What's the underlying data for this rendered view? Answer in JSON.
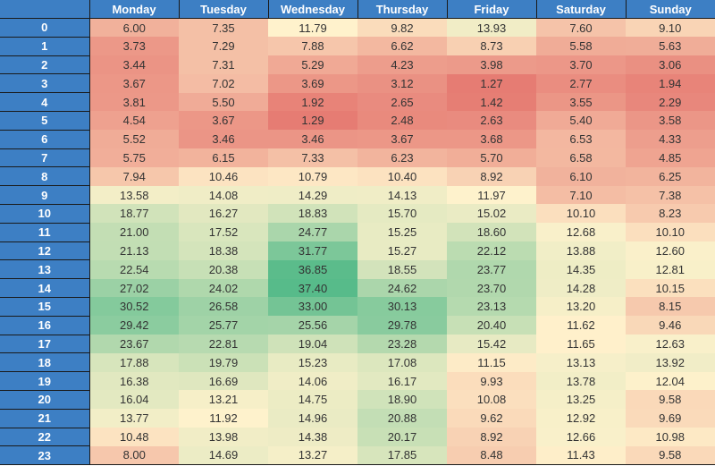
{
  "table": {
    "columns": [
      "Monday",
      "Tuesday",
      "Wednesday",
      "Thursday",
      "Friday",
      "Saturday",
      "Sunday"
    ],
    "rows": [
      {
        "hour": "0",
        "values": [
          "6.00",
          "7.35",
          "11.79",
          "9.82",
          "13.93",
          "7.60",
          "9.10"
        ]
      },
      {
        "hour": "1",
        "values": [
          "3.73",
          "7.29",
          "7.88",
          "6.62",
          "8.73",
          "5.58",
          "5.63"
        ]
      },
      {
        "hour": "2",
        "values": [
          "3.44",
          "7.31",
          "5.29",
          "4.23",
          "3.98",
          "3.70",
          "3.06"
        ]
      },
      {
        "hour": "3",
        "values": [
          "3.67",
          "7.02",
          "3.69",
          "3.12",
          "1.27",
          "2.77",
          "1.94"
        ]
      },
      {
        "hour": "4",
        "values": [
          "3.81",
          "5.50",
          "1.92",
          "2.65",
          "1.42",
          "3.55",
          "2.29"
        ]
      },
      {
        "hour": "5",
        "values": [
          "4.54",
          "3.67",
          "1.29",
          "2.48",
          "2.63",
          "5.40",
          "3.58"
        ]
      },
      {
        "hour": "6",
        "values": [
          "5.52",
          "3.46",
          "3.46",
          "3.67",
          "3.68",
          "6.53",
          "4.33"
        ]
      },
      {
        "hour": "7",
        "values": [
          "5.75",
          "6.15",
          "7.33",
          "6.23",
          "5.70",
          "6.58",
          "4.85"
        ]
      },
      {
        "hour": "8",
        "values": [
          "7.94",
          "10.46",
          "10.79",
          "10.40",
          "8.92",
          "6.10",
          "6.25"
        ]
      },
      {
        "hour": "9",
        "values": [
          "13.58",
          "14.08",
          "14.29",
          "14.13",
          "11.97",
          "7.10",
          "7.38"
        ]
      },
      {
        "hour": "10",
        "values": [
          "18.77",
          "16.27",
          "18.83",
          "15.70",
          "15.02",
          "10.10",
          "8.23"
        ]
      },
      {
        "hour": "11",
        "values": [
          "21.00",
          "17.52",
          "24.77",
          "15.25",
          "18.60",
          "12.68",
          "10.10"
        ]
      },
      {
        "hour": "12",
        "values": [
          "21.13",
          "18.38",
          "31.77",
          "15.27",
          "22.12",
          "13.88",
          "12.60"
        ]
      },
      {
        "hour": "13",
        "values": [
          "22.54",
          "20.38",
          "36.85",
          "18.55",
          "23.77",
          "14.35",
          "12.81"
        ]
      },
      {
        "hour": "14",
        "values": [
          "27.02",
          "24.02",
          "37.40",
          "24.62",
          "23.70",
          "14.28",
          "10.15"
        ]
      },
      {
        "hour": "15",
        "values": [
          "30.52",
          "26.58",
          "33.00",
          "30.13",
          "23.13",
          "13.20",
          "8.15"
        ]
      },
      {
        "hour": "16",
        "values": [
          "29.42",
          "25.77",
          "25.56",
          "29.78",
          "20.40",
          "11.62",
          "9.46"
        ]
      },
      {
        "hour": "17",
        "values": [
          "23.67",
          "22.81",
          "19.04",
          "23.28",
          "15.42",
          "11.65",
          "12.63"
        ]
      },
      {
        "hour": "18",
        "values": [
          "17.88",
          "19.79",
          "15.23",
          "17.08",
          "11.15",
          "13.13",
          "13.92"
        ]
      },
      {
        "hour": "19",
        "values": [
          "16.38",
          "16.69",
          "14.06",
          "16.17",
          "9.93",
          "13.78",
          "12.04"
        ]
      },
      {
        "hour": "20",
        "values": [
          "16.04",
          "13.21",
          "14.75",
          "18.90",
          "10.08",
          "13.25",
          "9.58"
        ]
      },
      {
        "hour": "21",
        "values": [
          "13.77",
          "11.92",
          "14.96",
          "20.88",
          "9.62",
          "12.92",
          "9.69"
        ]
      },
      {
        "hour": "22",
        "values": [
          "10.48",
          "13.98",
          "14.38",
          "20.17",
          "8.92",
          "12.66",
          "10.98"
        ]
      },
      {
        "hour": "23",
        "values": [
          "8.00",
          "14.69",
          "13.27",
          "17.85",
          "8.48",
          "11.43",
          "9.58"
        ]
      }
    ]
  },
  "color_scale": {
    "low": "#e67c73",
    "mid": "#fff2cc",
    "high": "#57bb8a",
    "header_bg": "#3d7fc4",
    "header_text": "#ffffff"
  }
}
